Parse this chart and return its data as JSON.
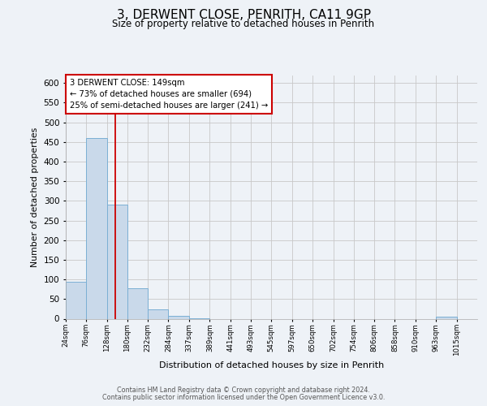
{
  "title": "3, DERWENT CLOSE, PENRITH, CA11 9GP",
  "subtitle": "Size of property relative to detached houses in Penrith",
  "xlabel": "Distribution of detached houses by size in Penrith",
  "ylabel": "Number of detached properties",
  "bar_edges": [
    24,
    76,
    128,
    180,
    232,
    284,
    337,
    389,
    441,
    493,
    545,
    597,
    650,
    702,
    754,
    806,
    858,
    910,
    963,
    1015,
    1067
  ],
  "bar_heights": [
    95,
    460,
    290,
    77,
    23,
    7,
    2,
    0,
    0,
    0,
    0,
    0,
    0,
    0,
    0,
    0,
    0,
    0,
    5,
    0,
    0
  ],
  "bar_color": "#C9D9EA",
  "bar_edgecolor": "#7BAFD4",
  "bar_linewidth": 0.7,
  "redline_x": 149,
  "annotation_line1": "3 DERWENT CLOSE: 149sqm",
  "annotation_line2": "← 73% of detached houses are smaller (694)",
  "annotation_line3": "25% of semi-detached houses are larger (241) →",
  "ylim": [
    0,
    620
  ],
  "yticks": [
    0,
    50,
    100,
    150,
    200,
    250,
    300,
    350,
    400,
    450,
    500,
    550,
    600
  ],
  "bg_color": "#EEF2F7",
  "grid_color": "#C8C8C8",
  "footer_line1": "Contains HM Land Registry data © Crown copyright and database right 2024.",
  "footer_line2": "Contains public sector information licensed under the Open Government Licence v3.0."
}
